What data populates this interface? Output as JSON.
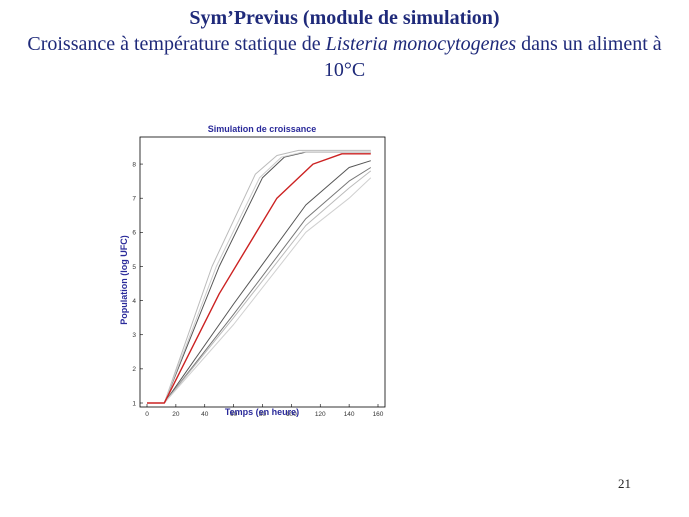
{
  "slide": {
    "title": "Sym’Previus (module de simulation)",
    "subtitle_before": "Croissance à température statique de ",
    "subtitle_italic": "Listeria monocytogenes",
    "subtitle_after": " dans un aliment à 10°C",
    "page_number": "21",
    "title_color": "#1f2a7a"
  },
  "chart_data": {
    "type": "line",
    "title": "Simulation de croissance",
    "xlabel": "Temps (en heure)",
    "ylabel": "Population (log UFC)",
    "xlim": [
      0,
      160
    ],
    "ylim": [
      1,
      8.5
    ],
    "xticks": [
      0,
      20,
      40,
      60,
      80,
      100,
      120,
      140,
      160
    ],
    "yticks": [
      1,
      2,
      3,
      4,
      5,
      6,
      7,
      8
    ],
    "grid": false,
    "legend": "none",
    "series": [
      {
        "role": "median",
        "color": "#cc2222",
        "x": [
          0,
          12,
          50,
          90,
          115,
          135,
          155
        ],
        "y": [
          1.0,
          1.0,
          4.2,
          7.0,
          8.0,
          8.3,
          8.3
        ]
      },
      {
        "role": "upper-dark",
        "color": "#555555",
        "x": [
          0,
          12,
          50,
          80,
          95,
          110,
          155
        ],
        "y": [
          1.0,
          1.0,
          5.0,
          7.6,
          8.2,
          8.35,
          8.35
        ]
      },
      {
        "role": "upper-light-1",
        "color": "#bbbbbb",
        "x": [
          0,
          12,
          45,
          75,
          90,
          105,
          155
        ],
        "y": [
          1.0,
          1.0,
          5.0,
          7.7,
          8.25,
          8.4,
          8.4
        ]
      },
      {
        "role": "upper-light-2",
        "color": "#cccccc",
        "x": [
          0,
          12,
          48,
          78,
          93,
          108,
          155
        ],
        "y": [
          1.0,
          1.0,
          5.0,
          7.6,
          8.2,
          8.35,
          8.35
        ]
      },
      {
        "role": "lower-dark-1",
        "color": "#555555",
        "x": [
          0,
          12,
          60,
          110,
          140,
          155
        ],
        "y": [
          1.0,
          1.0,
          3.9,
          6.8,
          7.9,
          8.1
        ]
      },
      {
        "role": "lower-dark-2",
        "color": "#777777",
        "x": [
          0,
          12,
          60,
          110,
          140,
          155
        ],
        "y": [
          1.0,
          1.0,
          3.6,
          6.4,
          7.5,
          7.9
        ]
      },
      {
        "role": "lower-light-1",
        "color": "#bbbbbb",
        "x": [
          0,
          12,
          60,
          110,
          140,
          155
        ],
        "y": [
          1.0,
          1.0,
          3.5,
          6.2,
          7.3,
          7.8
        ]
      },
      {
        "role": "lower-light-2",
        "color": "#d0d0d0",
        "x": [
          0,
          12,
          60,
          110,
          140,
          155
        ],
        "y": [
          1.0,
          1.0,
          3.3,
          6.0,
          7.0,
          7.6
        ]
      }
    ]
  }
}
